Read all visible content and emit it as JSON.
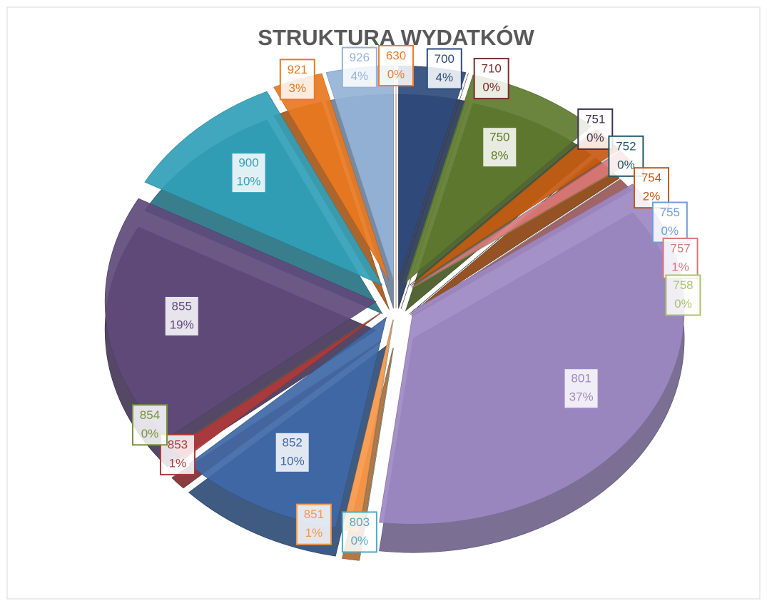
{
  "chart_data": {
    "type": "pie",
    "title": "STRUKTURA WYDATKÓW",
    "categories": [
      "630",
      "700",
      "710",
      "750",
      "751",
      "752",
      "754",
      "755",
      "757",
      "758",
      "801",
      "803",
      "851",
      "852",
      "853",
      "854",
      "855",
      "900",
      "921",
      "926"
    ],
    "values": [
      0,
      4,
      0,
      8,
      0,
      0,
      2,
      0,
      1,
      0,
      37,
      0,
      1,
      10,
      1,
      0,
      19,
      10,
      3,
      4
    ],
    "value_labels": [
      "0%",
      "4%",
      "0%",
      "8%",
      "0%",
      "0%",
      "2%",
      "0%",
      "1%",
      "0%",
      "37%",
      "0%",
      "1%",
      "10%",
      "1%",
      "0%",
      "19%",
      "10%",
      "3%",
      "4%"
    ],
    "colors": [
      "#ed7d31",
      "#2f4b7c",
      "#7b2c2c",
      "#5e7a2e",
      "#3f3151",
      "#215968",
      "#c55a11",
      "#6f9bd8",
      "#d9787a",
      "#a9c46a",
      "#9c88c2",
      "#4bacc6",
      "#f79646",
      "#3e68a6",
      "#b0393a",
      "#77933c",
      "#604a7b",
      "#31a0b8",
      "#e8781f",
      "#95b3d7"
    ]
  }
}
